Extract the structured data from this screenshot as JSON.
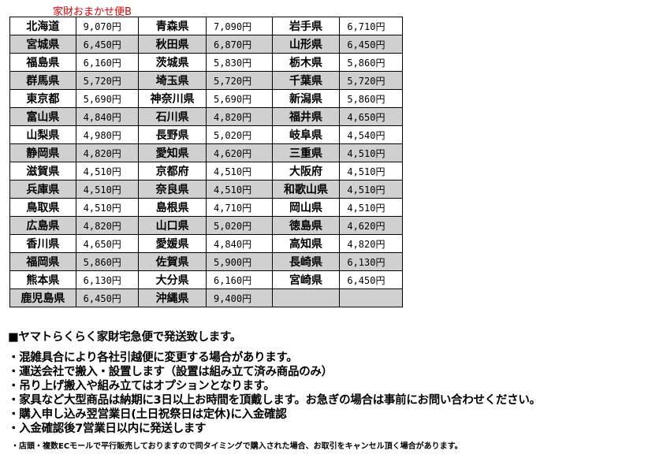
{
  "title": "家財おまかせ便B",
  "rows": [
    [
      "北海道",
      "9,070円",
      "青森県",
      "7,090円",
      "岩手県",
      "6,710円"
    ],
    [
      "宮城県",
      "6,450円",
      "秋田県",
      "6,870円",
      "山形県",
      "6,450円"
    ],
    [
      "福島県",
      "6,160円",
      "茨城県",
      "5,830円",
      "栃木県",
      "5,860円"
    ],
    [
      "群馬県",
      "5,720円",
      "埼玉県",
      "5,720円",
      "千葉県",
      "5,720円"
    ],
    [
      "東京都",
      "5,690円",
      "神奈川県",
      "5,690円",
      "新潟県",
      "5,860円"
    ],
    [
      "富山県",
      "4,840円",
      "石川県",
      "4,820円",
      "福井県",
      "4,650円"
    ],
    [
      "山梨県",
      "4,980円",
      "長野県",
      "5,020円",
      "岐阜県",
      "4,540円"
    ],
    [
      "静岡県",
      "4,820円",
      "愛知県",
      "4,620円",
      "三重県",
      "4,510円"
    ],
    [
      "滋賀県",
      "4,510円",
      "京都府",
      "4,510円",
      "大阪府",
      "4,510円"
    ],
    [
      "兵庫県",
      "4,510円",
      "奈良県",
      "4,510円",
      "和歌山県",
      "4,510円"
    ],
    [
      "鳥取県",
      "4,510円",
      "島根県",
      "4,710円",
      "岡山県",
      "4,510円"
    ],
    [
      "広島県",
      "4,820円",
      "山口県",
      "5,020円",
      "徳島県",
      "4,620円"
    ],
    [
      "香川県",
      "4,650円",
      "愛媛県",
      "4,840円",
      "高知県",
      "4,820円"
    ],
    [
      "福岡県",
      "5,860円",
      "佐賀県",
      "5,900円",
      "長崎県",
      "6,130円"
    ],
    [
      "熊本県",
      "6,130円",
      "大分県",
      "6,160円",
      "宮崎県",
      "6,450円"
    ],
    [
      "鹿児島県",
      "6,450円",
      "沖縄県",
      "9,400円",
      "",
      ""
    ]
  ],
  "notes": {
    "heading": "■ヤマトらくらく家財宅急便で発送致します。",
    "items": [
      "・混雑具合により各社引越便に変更する場合があります。",
      "・運送会社で搬入・設置します（設置は組み立て済み商品のみ）",
      "・吊り上げ搬入や組み立てはオプションとなります。",
      "・家具など大型商品は納期に3日以上お時間を頂戴します。お急ぎの場合は事前にお問い合わせください。",
      "・購入申し込み翌営業日(土日祝祭日は定休)に入金確認",
      "・入金確認後7営業日以内に発送します"
    ],
    "footnote": "・店頭・複数ECモールで平行販売しておりますので同タイミングで購入された場合、お取引をキャンセル頂く場合があります。"
  }
}
